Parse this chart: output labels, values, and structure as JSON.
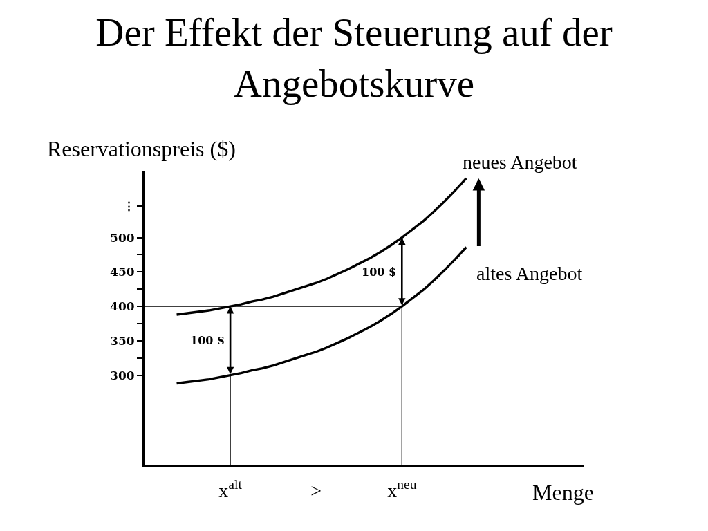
{
  "chart_data": {
    "type": "line",
    "title": "Der Effekt der Steuerung auf der Angebotskurve",
    "xlabel": "Menge",
    "ylabel": "Reservationspreis ($)",
    "categories": [
      null,
      null,
      null,
      null,
      null,
      null,
      null,
      null,
      "x$^{alt}$",
      null,
      null,
      null,
      null,
      null,
      null,
      null,
      ">",
      null,
      null,
      null,
      null,
      null,
      null,
      null,
      "x$^{neu}$",
      null,
      null,
      null,
      null,
      null,
      null,
      null,
      null,
      null,
      null,
      null,
      null,
      null,
      null,
      null,
      null,
      null
    ],
    "series": [
      {
        "name": "neues Angebot",
        "color": "#000000",
        "values": [
          null,
          null,
          null,
          388,
          390,
          392,
          394,
          397,
          400,
          403,
          407,
          410,
          414,
          419,
          424,
          429,
          434,
          440,
          447,
          454,
          462,
          470,
          479,
          489,
          500,
          512,
          524,
          538,
          553,
          569,
          586,
          null,
          null,
          null,
          null,
          null,
          null,
          null,
          null,
          null,
          null,
          null
        ]
      },
      {
        "name": "altes Angebot",
        "color": "#000000",
        "values": [
          null,
          null,
          null,
          288,
          290,
          292,
          294,
          297,
          300,
          303,
          307,
          310,
          314,
          319,
          324,
          329,
          334,
          340,
          347,
          354,
          362,
          370,
          379,
          389,
          400,
          412,
          424,
          438,
          453,
          469,
          486,
          null,
          null,
          null,
          null,
          null,
          null,
          null,
          null,
          null,
          null,
          null
        ]
      },
      {
        "color": "#000000",
        "values": [
          400,
          400,
          400,
          400,
          400,
          400,
          400,
          400,
          400,
          400,
          400,
          400,
          400,
          400,
          400,
          400,
          400,
          400,
          400,
          400,
          400,
          400,
          400,
          400,
          400,
          null,
          null,
          null,
          null,
          null,
          null,
          null,
          null,
          null,
          null,
          null,
          null,
          null,
          null,
          null,
          null,
          null
        ]
      },
      {
        "color": "#000000",
        "x": [
          "x$^{alt}$",
          "x$^{alt}$"
        ],
        "values": [
          170,
          300
        ]
      },
      {
        "color": "#000000",
        "x": [
          "x$^{neu}$",
          "x$^{neu}$"
        ],
        "values": [
          170,
          400
        ]
      }
    ],
    "ylim": [
      170,
      597
    ],
    "yticks": [
      300,
      {
        "value": 325,
        "label": null
      },
      350,
      {
        "value": 375,
        "label": null
      },
      400,
      {
        "value": 425,
        "label": null
      },
      450,
      {
        "value": 475,
        "label": null
      },
      500,
      {
        "value": 546,
        "label": "⋮"
      }
    ],
    "annotations": [
      {
        "text": "100 $",
        "x": "x$^{alt}$",
        "y": 400
      },
      {
        "text": "100 $",
        "x": "x$^{neu}$",
        "y": 500
      }
    ]
  }
}
